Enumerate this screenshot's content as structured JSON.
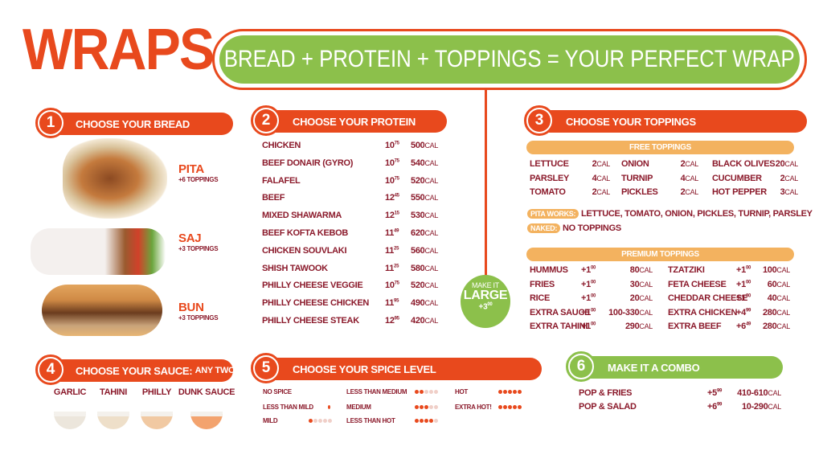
{
  "title": "WRAPS",
  "banner": "BREAD + PROTEIN + TOPPINGS = YOUR PERFECT WRAP",
  "sections": {
    "bread": {
      "num": "1",
      "label": "CHOOSE YOUR BREAD"
    },
    "protein": {
      "num": "2",
      "label": "CHOOSE YOUR PROTEIN"
    },
    "toppings": {
      "num": "3",
      "label": "CHOOSE YOUR TOPPINGS"
    },
    "sauce": {
      "num": "4",
      "label": "CHOOSE YOUR SAUCE:",
      "sub": "ANY TWO"
    },
    "spice": {
      "num": "5",
      "label": "CHOOSE YOUR SPICE LEVEL"
    },
    "combo": {
      "num": "6",
      "label": "MAKE IT A COMBO"
    }
  },
  "breads": [
    {
      "name": "PITA",
      "sub": "+6 TOPPINGS"
    },
    {
      "name": "SAJ",
      "sub": "+3 TOPPINGS"
    },
    {
      "name": "BUN",
      "sub": "+3 TOPPINGS"
    }
  ],
  "proteins": [
    {
      "name": "CHICKEN",
      "price": "10",
      "cents": "75",
      "cal": "500"
    },
    {
      "name": "BEEF DONAIR (GYRO)",
      "price": "10",
      "cents": "75",
      "cal": "540"
    },
    {
      "name": "FALAFEL",
      "price": "10",
      "cents": "75",
      "cal": "520"
    },
    {
      "name": "BEEF",
      "price": "12",
      "cents": "45",
      "cal": "550"
    },
    {
      "name": "MIXED SHAWARMA",
      "price": "12",
      "cents": "15",
      "cal": "530"
    },
    {
      "name": "BEEF KOFTA KEBOB",
      "price": "11",
      "cents": "49",
      "cal": "620"
    },
    {
      "name": "CHICKEN SOUVLAKI",
      "price": "11",
      "cents": "25",
      "cal": "560"
    },
    {
      "name": "SHISH TAWOOK",
      "price": "11",
      "cents": "25",
      "cal": "580"
    },
    {
      "name": "PHILLY CHEESE VEGGIE",
      "price": "10",
      "cents": "75",
      "cal": "520"
    },
    {
      "name": "PHILLY CHEESE CHICKEN",
      "price": "11",
      "cents": "95",
      "cal": "490"
    },
    {
      "name": "PHILLY CHEESE STEAK",
      "price": "12",
      "cents": "95",
      "cal": "420"
    }
  ],
  "cal_unit": "cal",
  "large": {
    "line1": "MAKE IT",
    "line2": "LARGE",
    "price": "+3",
    "cents": "00"
  },
  "free_toppings": {
    "header": "FREE TOPPINGS",
    "items": [
      {
        "name": "LETTUCE",
        "cal": "2"
      },
      {
        "name": "ONION",
        "cal": "2"
      },
      {
        "name": "BLACK OLIVES",
        "cal": "20"
      },
      {
        "name": "PARSLEY",
        "cal": "4"
      },
      {
        "name": "TURNIP",
        "cal": "4"
      },
      {
        "name": "CUCUMBER",
        "cal": "2"
      },
      {
        "name": "TOMATO",
        "cal": "2"
      },
      {
        "name": "PICKLES",
        "cal": "2"
      },
      {
        "name": "HOT PEPPER",
        "cal": "3"
      }
    ]
  },
  "pita_works": {
    "tag": "PITA WORKS:",
    "text": "LETTUCE, TOMATO, ONION, PICKLES, TURNIP, PARSLEY"
  },
  "naked": {
    "tag": "NAKED:",
    "text": "NO TOPPINGS"
  },
  "premium_toppings": {
    "header": "PREMIUM TOPPINGS",
    "left": [
      {
        "name": "HUMMUS",
        "price": "+1",
        "cents": "00",
        "cal": "80"
      },
      {
        "name": "FRIES",
        "price": "+1",
        "cents": "00",
        "cal": "30"
      },
      {
        "name": "RICE",
        "price": "+1",
        "cents": "00",
        "cal": "20"
      },
      {
        "name": "EXTRA SAUCE",
        "price": "+1",
        "cents": "00",
        "cal": "100-330"
      },
      {
        "name": "EXTRA TAHINI",
        "price": "+1",
        "cents": "00",
        "cal": "290"
      }
    ],
    "right": [
      {
        "name": "TZATZIKI",
        "price": "+1",
        "cents": "00",
        "cal": "100"
      },
      {
        "name": "FETA CHEESE",
        "price": "+1",
        "cents": "00",
        "cal": "60"
      },
      {
        "name": "CHEDDAR CHEESE",
        "price": "+1",
        "cents": "00",
        "cal": "40"
      },
      {
        "name": "EXTRA CHICKEN",
        "price": "+4",
        "cents": "99",
        "cal": "280"
      },
      {
        "name": "EXTRA BEEF",
        "price": "+6",
        "cents": "49",
        "cal": "280"
      }
    ]
  },
  "sauces": [
    "GARLIC",
    "TAHINI",
    "PHILLY",
    "DUNK SAUCE"
  ],
  "spice_levels": [
    {
      "name": "NO SPICE",
      "level": 0
    },
    {
      "name": "LESS THAN MILD",
      "level": 0.5
    },
    {
      "name": "MILD",
      "level": 1
    },
    {
      "name": "LESS THAN MEDIUM",
      "level": 2
    },
    {
      "name": "MEDIUM",
      "level": 3
    },
    {
      "name": "LESS THAN HOT",
      "level": 4
    },
    {
      "name": "HOT",
      "level": 5
    },
    {
      "name": "EXTRA HOT!",
      "level": 6
    }
  ],
  "combos": [
    {
      "name": "POP & FRIES",
      "price": "+5",
      "cents": "99",
      "cal": "410-610"
    },
    {
      "name": "POP & SALAD",
      "price": "+6",
      "cents": "99",
      "cal": "10-290"
    }
  ],
  "colors": {
    "orange": "#e8491d",
    "green": "#8cc04b",
    "maroon": "#8b1a2b",
    "tan": "#f3b25f"
  }
}
